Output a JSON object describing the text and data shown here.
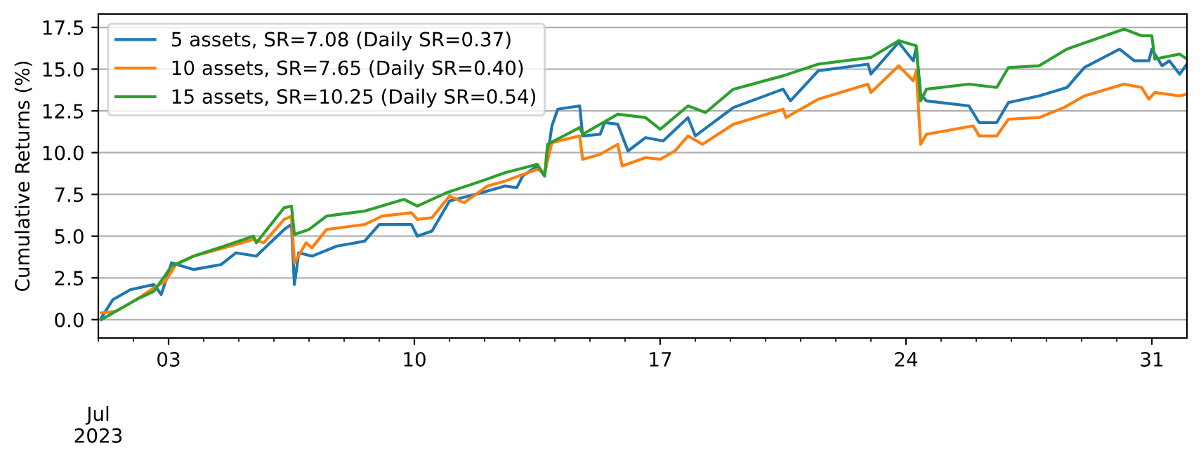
{
  "chart_data": {
    "type": "line",
    "ylabel": "Cumulative Returns (%)",
    "annotations": [
      "Jul\n2023"
    ],
    "xlim": [
      "2023-07-01",
      "2023-08-01"
    ],
    "xticks": [
      {
        "value": "2023-07-01",
        "label": null
      },
      {
        "value": "2023-07-03",
        "label": "03"
      },
      {
        "value": "2023-07-10",
        "label": "10"
      },
      {
        "value": "2023-07-17",
        "label": "17"
      },
      {
        "value": "2023-07-24",
        "label": "24"
      },
      {
        "value": "2023-07-31",
        "label": "31"
      },
      {
        "value": "2023-07-02",
        "label": null
      },
      {
        "value": "2023-07-04",
        "label": null
      },
      {
        "value": "2023-07-05",
        "label": null
      },
      {
        "value": "2023-07-06",
        "label": null
      },
      {
        "value": "2023-07-07",
        "label": null
      },
      {
        "value": "2023-07-08",
        "label": null
      },
      {
        "value": "2023-07-09",
        "label": null
      },
      {
        "value": "2023-07-11",
        "label": null
      },
      {
        "value": "2023-07-12",
        "label": null
      },
      {
        "value": "2023-07-13",
        "label": null
      },
      {
        "value": "2023-07-14",
        "label": null
      },
      {
        "value": "2023-07-15",
        "label": null
      },
      {
        "value": "2023-07-16",
        "label": null
      },
      {
        "value": "2023-07-18",
        "label": null
      },
      {
        "value": "2023-07-19",
        "label": null
      },
      {
        "value": "2023-07-20",
        "label": null
      },
      {
        "value": "2023-07-21",
        "label": null
      },
      {
        "value": "2023-07-22",
        "label": null
      },
      {
        "value": "2023-07-23",
        "label": null
      },
      {
        "value": "2023-07-25",
        "label": null
      },
      {
        "value": "2023-07-26",
        "label": null
      },
      {
        "value": "2023-07-27",
        "label": null
      },
      {
        "value": "2023-07-28",
        "label": null
      },
      {
        "value": "2023-07-29",
        "label": null
      },
      {
        "value": "2023-07-30",
        "label": null
      }
    ],
    "ylim": [
      -1.1,
      18.3
    ],
    "yticks": [
      {
        "value": 0,
        "label": "0.0"
      },
      2.5,
      {
        "value": 5,
        "label": "5.0"
      },
      7.5,
      {
        "value": 10,
        "label": "10.0"
      },
      12.5,
      {
        "value": 15,
        "label": "15.0"
      },
      17.5
    ],
    "grid": "y",
    "legend": "top left",
    "line_style": "solid",
    "marker": "none",
    "series": [
      {
        "name": "5 assets, SR=7.08 (Daily SR=0.37)",
        "color": "#1f77b4",
        "x": [
          "2023-07-01T02:00",
          "2023-07-01T10:00",
          "2023-07-01T22:00",
          "2023-07-02T14:00",
          "2023-07-02T19:00",
          "2023-07-03T02:00",
          "2023-07-03T17:00",
          "2023-07-04T12:00",
          "2023-07-04T22:00",
          "2023-07-05T12:00",
          "2023-07-06T07:00",
          "2023-07-06T12:00",
          "2023-07-06T14:00",
          "2023-07-06T17:00",
          "2023-07-07T02:00",
          "2023-07-07T19:00",
          "2023-07-08T14:00",
          "2023-07-09T00:00",
          "2023-07-09T22:00",
          "2023-07-10T02:00",
          "2023-07-10T12:00",
          "2023-07-11T00:00",
          "2023-07-11T22:00",
          "2023-07-12T14:00",
          "2023-07-12T22:00",
          "2023-07-13T02:00",
          "2023-07-13T12:00",
          "2023-07-13T17:00",
          "2023-07-13T22:00",
          "2023-07-14T02:00",
          "2023-07-14T17:00",
          "2023-07-14T19:00",
          "2023-07-15T07:00",
          "2023-07-15T10:00",
          "2023-07-15T19:00",
          "2023-07-16T02:00",
          "2023-07-16T14:00",
          "2023-07-17T02:00",
          "2023-07-17T19:00",
          "2023-07-18T00:00",
          "2023-07-19T02:00",
          "2023-07-20T12:00",
          "2023-07-20T17:00",
          "2023-07-21T12:00",
          "2023-07-22T22:00",
          "2023-07-23T00:00",
          "2023-07-23T19:00",
          "2023-07-24T05:00",
          "2023-07-24T07:00",
          "2023-07-24T10:00",
          "2023-07-24T14:00",
          "2023-07-25T19:00",
          "2023-07-26T02:00",
          "2023-07-26T14:00",
          "2023-07-26T22:00",
          "2023-07-27T19:00",
          "2023-07-28T14:00",
          "2023-07-29T02:00",
          "2023-07-30T02:00",
          "2023-07-30T12:00",
          "2023-07-30T22:00",
          "2023-07-31T00:00",
          "2023-07-31T07:00",
          "2023-07-31T12:00",
          "2023-07-31T19:00",
          "2023-08-01T00:00"
        ],
        "values": [
          0.1,
          1.2,
          1.8,
          2.1,
          1.5,
          3.4,
          3.0,
          3.3,
          4.0,
          3.8,
          5.4,
          5.7,
          2.1,
          4.0,
          3.8,
          4.4,
          4.7,
          5.7,
          5.7,
          5.0,
          5.3,
          7.1,
          7.6,
          8.0,
          7.9,
          8.6,
          9.2,
          8.6,
          11.6,
          12.6,
          12.8,
          11.0,
          11.1,
          11.8,
          11.7,
          10.1,
          10.9,
          10.7,
          12.1,
          11.0,
          12.7,
          13.8,
          13.1,
          14.9,
          15.3,
          14.7,
          16.6,
          15.5,
          16.3,
          13.5,
          13.1,
          12.8,
          11.8,
          11.8,
          13.0,
          13.4,
          13.9,
          15.1,
          16.2,
          15.5,
          15.5,
          16.2,
          15.2,
          15.5,
          14.7,
          15.3
        ]
      },
      {
        "name": "10 assets, SR=7.65 (Daily SR=0.40)",
        "color": "#ff7f0e",
        "x": [
          "2023-07-01T02:00",
          "2023-07-01T12:00",
          "2023-07-02T02:00",
          "2023-07-02T14:00",
          "2023-07-02T22:00",
          "2023-07-03T05:00",
          "2023-07-03T17:00",
          "2023-07-04T14:00",
          "2023-07-05T10:00",
          "2023-07-05T17:00",
          "2023-07-06T07:00",
          "2023-07-06T12:00",
          "2023-07-06T14:00",
          "2023-07-06T22:00",
          "2023-07-07T02:00",
          "2023-07-07T12:00",
          "2023-07-08T14:00",
          "2023-07-09T02:00",
          "2023-07-09T22:00",
          "2023-07-10T02:00",
          "2023-07-10T12:00",
          "2023-07-11T00:00",
          "2023-07-11T10:00",
          "2023-07-12T02:00",
          "2023-07-12T14:00",
          "2023-07-13T12:00",
          "2023-07-13T17:00",
          "2023-07-13T22:00",
          "2023-07-14T17:00",
          "2023-07-14T19:00",
          "2023-07-15T07:00",
          "2023-07-15T19:00",
          "2023-07-15T22:00",
          "2023-07-16T14:00",
          "2023-07-17T00:00",
          "2023-07-17T10:00",
          "2023-07-17T19:00",
          "2023-07-18T05:00",
          "2023-07-19T02:00",
          "2023-07-20T12:00",
          "2023-07-20T14:00",
          "2023-07-21T12:00",
          "2023-07-22T22:00",
          "2023-07-23T00:00",
          "2023-07-23T19:00",
          "2023-07-24T05:00",
          "2023-07-24T07:00",
          "2023-07-24T10:00",
          "2023-07-24T14:00",
          "2023-07-25T22:00",
          "2023-07-26T02:00",
          "2023-07-26T14:00",
          "2023-07-26T22:00",
          "2023-07-27T19:00",
          "2023-07-28T12:00",
          "2023-07-29T02:00",
          "2023-07-30T05:00",
          "2023-07-30T17:00",
          "2023-07-30T22:00",
          "2023-07-31T02:00",
          "2023-07-31T19:00",
          "2023-08-01T00:00"
        ],
        "values": [
          0.4,
          0.5,
          1.2,
          1.9,
          2.3,
          3.3,
          3.8,
          4.3,
          4.8,
          4.6,
          6.0,
          6.2,
          3.4,
          4.6,
          4.3,
          5.4,
          5.7,
          6.2,
          6.4,
          6.0,
          6.1,
          7.4,
          7.0,
          8.0,
          8.3,
          9.0,
          8.8,
          10.6,
          11.0,
          9.6,
          9.9,
          10.5,
          9.2,
          9.7,
          9.6,
          10.1,
          11.0,
          10.5,
          11.7,
          12.6,
          12.1,
          13.2,
          14.1,
          13.6,
          15.2,
          14.3,
          14.9,
          10.5,
          11.1,
          11.6,
          11.0,
          11.0,
          12.0,
          12.1,
          12.7,
          13.4,
          14.1,
          13.9,
          13.2,
          13.6,
          13.4,
          13.5
        ]
      },
      {
        "name": "15 assets, SR=10.25 (Daily SR=0.54)",
        "color": "#2ca02c",
        "x": [
          "2023-07-01T02:00",
          "2023-07-01T10:00",
          "2023-07-02T02:00",
          "2023-07-02T14:00",
          "2023-07-03T02:00",
          "2023-07-03T17:00",
          "2023-07-04T14:00",
          "2023-07-05T10:00",
          "2023-07-05T12:00",
          "2023-07-06T07:00",
          "2023-07-06T12:00",
          "2023-07-06T14:00",
          "2023-07-07T00:00",
          "2023-07-07T12:00",
          "2023-07-08T14:00",
          "2023-07-09T17:00",
          "2023-07-10T02:00",
          "2023-07-10T22:00",
          "2023-07-11T22:00",
          "2023-07-12T14:00",
          "2023-07-13T12:00",
          "2023-07-13T17:00",
          "2023-07-13T19:00",
          "2023-07-14T17:00",
          "2023-07-14T19:00",
          "2023-07-15T19:00",
          "2023-07-16T14:00",
          "2023-07-17T00:00",
          "2023-07-17T19:00",
          "2023-07-18T07:00",
          "2023-07-19T02:00",
          "2023-07-20T12:00",
          "2023-07-21T12:00",
          "2023-07-23T00:00",
          "2023-07-23T19:00",
          "2023-07-24T07:00",
          "2023-07-24T10:00",
          "2023-07-24T14:00",
          "2023-07-25T19:00",
          "2023-07-26T14:00",
          "2023-07-26T22:00",
          "2023-07-27T19:00",
          "2023-07-28T14:00",
          "2023-07-30T05:00",
          "2023-07-30T17:00",
          "2023-07-31T00:00",
          "2023-07-31T02:00",
          "2023-07-31T19:00",
          "2023-08-01T00:00"
        ],
        "values": [
          0.0,
          0.4,
          1.2,
          1.7,
          3.2,
          3.8,
          4.4,
          5.0,
          4.6,
          6.7,
          6.8,
          5.1,
          5.4,
          6.2,
          6.5,
          7.2,
          6.8,
          7.6,
          8.3,
          8.8,
          9.3,
          8.6,
          10.5,
          11.5,
          11.1,
          12.3,
          12.1,
          11.4,
          12.8,
          12.4,
          13.8,
          14.6,
          15.3,
          15.7,
          16.7,
          16.4,
          13.1,
          13.8,
          14.1,
          13.9,
          15.1,
          15.2,
          16.2,
          17.4,
          17.0,
          17.0,
          15.6,
          15.9,
          15.6
        ]
      }
    ]
  }
}
